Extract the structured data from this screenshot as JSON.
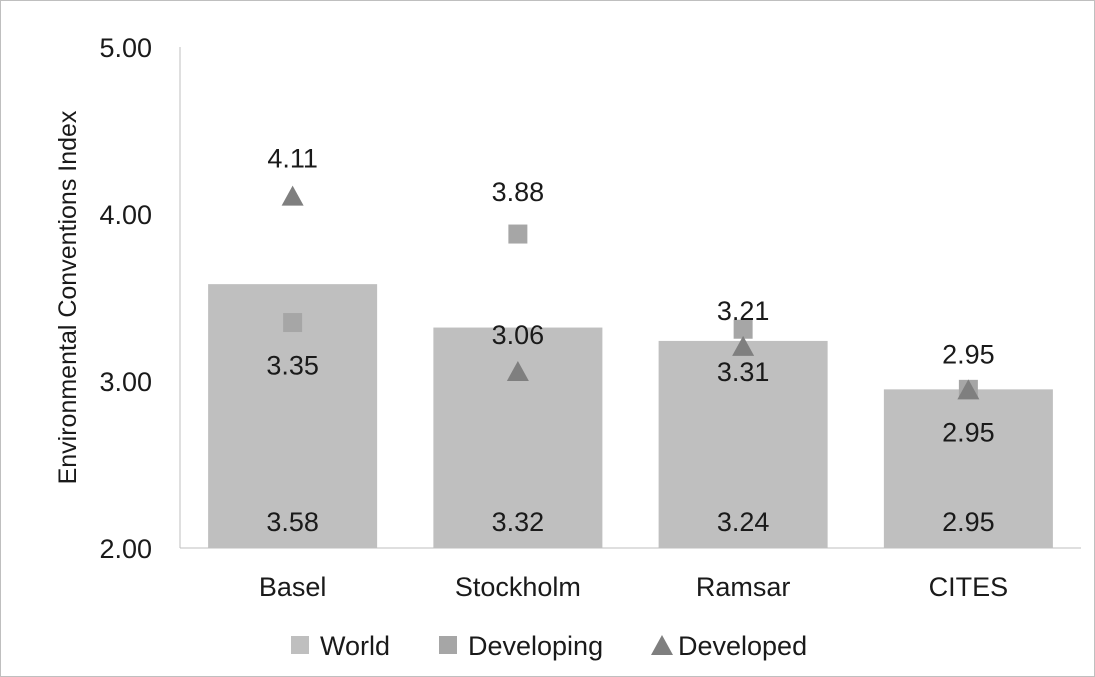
{
  "chart_data": {
    "type": "bar",
    "title": "",
    "xlabel": "",
    "ylabel": "Environmental Conventions Index",
    "ylim": [
      2.0,
      5.0
    ],
    "yticks": [
      "2.00",
      "3.00",
      "4.00",
      "5.00"
    ],
    "ytick_values": [
      2.0,
      3.0,
      4.0,
      5.0
    ],
    "categories": [
      "Basel",
      "Stockholm",
      "Ramsar",
      "CITES"
    ],
    "grid": false,
    "legend_position": "bottom",
    "series": [
      {
        "name": "World",
        "kind": "bar",
        "marker": "square",
        "color": "#bfbfbf",
        "values": [
          3.58,
          3.32,
          3.24,
          2.95
        ],
        "labels": [
          "3.58",
          "3.32",
          "3.24",
          "2.95"
        ]
      },
      {
        "name": "Developing",
        "kind": "marker",
        "marker": "square",
        "color": "#a6a6a6",
        "values": [
          3.35,
          3.88,
          3.31,
          2.95
        ],
        "labels": [
          "3.35",
          "3.88",
          "3.31",
          "2.95"
        ]
      },
      {
        "name": "Developed",
        "kind": "marker",
        "marker": "triangle",
        "color": "#7f7f7f",
        "values": [
          4.11,
          3.06,
          3.21,
          2.95
        ],
        "labels": [
          "4.11",
          "3.06",
          "3.21",
          "2.95"
        ]
      }
    ]
  }
}
